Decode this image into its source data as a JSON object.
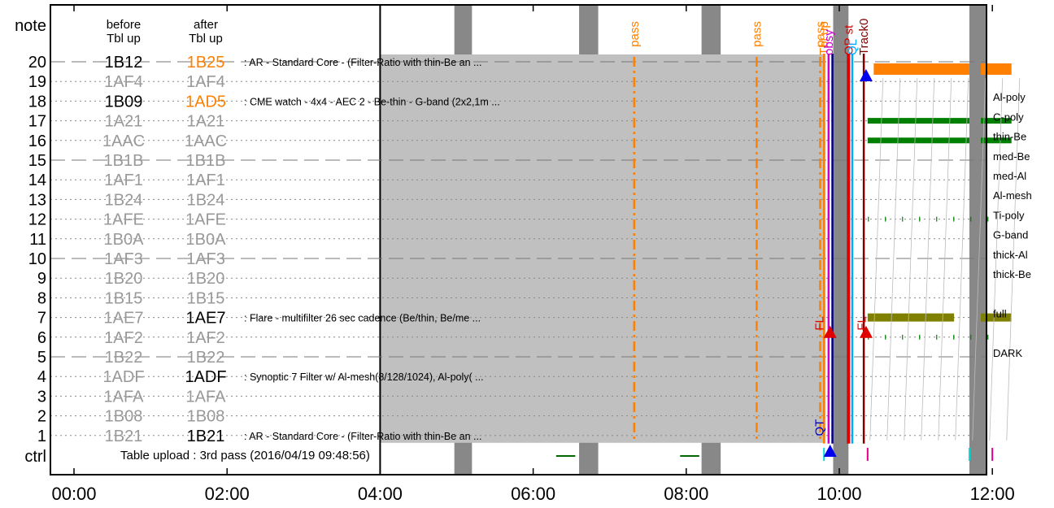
{
  "chart_data": {
    "type": "timeline",
    "x_range_hours": [
      0,
      12.25
    ],
    "x_ticks": [
      "00:00",
      "02:00",
      "04:00",
      "06:00",
      "08:00",
      "10:00",
      "12:00"
    ],
    "y_top_label": "note",
    "y_bottom_label": "ctrl",
    "rows": [
      {
        "row": 20,
        "before": "1B12",
        "after": "1B25",
        "after_color": "#ff8000",
        "before_state": "active",
        "after_state": "changed",
        "note": ": AR - Standard Core - (Filter-Ratio with thin-Be an ...",
        "right": ""
      },
      {
        "row": 19,
        "before": "1AF4",
        "after": "1AF4",
        "before_state": "inactive",
        "after_state": "inactive",
        "note": "",
        "right": "Al-poly"
      },
      {
        "row": 18,
        "before": "1B09",
        "after": "1AD5",
        "after_color": "#ff8000",
        "before_state": "active",
        "after_state": "changed",
        "note": ": CME watch - 4x4 - AEC 2 - Be-thin - G-band (2x2,1m ...",
        "right": "C-poly"
      },
      {
        "row": 17,
        "before": "1A21",
        "after": "1A21",
        "before_state": "inactive",
        "after_state": "inactive",
        "note": "",
        "right": "thin-Be"
      },
      {
        "row": 16,
        "before": "1AAC",
        "after": "1AAC",
        "before_state": "inactive",
        "after_state": "inactive",
        "note": "",
        "right": "med-Be"
      },
      {
        "row": 15,
        "before": "1B1B",
        "after": "1B1B",
        "before_state": "inactive",
        "after_state": "inactive",
        "note": "",
        "right": "med-Al"
      },
      {
        "row": 14,
        "before": "1AF1",
        "after": "1AF1",
        "before_state": "inactive",
        "after_state": "inactive",
        "note": "",
        "right": "Al-mesh"
      },
      {
        "row": 13,
        "before": "1B24",
        "after": "1B24",
        "before_state": "inactive",
        "after_state": "inactive",
        "note": "",
        "right": "Ti-poly"
      },
      {
        "row": 12,
        "before": "1AFE",
        "after": "1AFE",
        "before_state": "inactive",
        "after_state": "inactive",
        "note": "",
        "right": "G-band"
      },
      {
        "row": 11,
        "before": "1B0A",
        "after": "1B0A",
        "before_state": "inactive",
        "after_state": "inactive",
        "note": "",
        "right": "thick-Al"
      },
      {
        "row": 10,
        "before": "1AF3",
        "after": "1AF3",
        "before_state": "inactive",
        "after_state": "inactive",
        "note": "",
        "right": "thick-Be"
      },
      {
        "row": 9,
        "before": "1B20",
        "after": "1B20",
        "before_state": "inactive",
        "after_state": "inactive",
        "note": "",
        "right": ""
      },
      {
        "row": 8,
        "before": "1B15",
        "after": "1B15",
        "before_state": "inactive",
        "after_state": "inactive",
        "note": "",
        "right": "full"
      },
      {
        "row": 7,
        "before": "1AE7",
        "after": "1AE7",
        "before_state": "inactive",
        "after_state": "active",
        "note": ": Flare - multifilter 26 sec cadence (Be/thin, Be/me ...",
        "right": ""
      },
      {
        "row": 6,
        "before": "1AF2",
        "after": "1AF2",
        "before_state": "inactive",
        "after_state": "inactive",
        "note": "",
        "right": "DARK"
      },
      {
        "row": 5,
        "before": "1B22",
        "after": "1B22",
        "before_state": "inactive",
        "after_state": "inactive",
        "note": "",
        "right": ""
      },
      {
        "row": 4,
        "before": "1ADF",
        "after": "1ADF",
        "before_state": "inactive",
        "after_state": "active",
        "note": ": Synoptic 7 Filter w/ Al-mesh(8/128/1024), Al-poly( ...",
        "right": ""
      },
      {
        "row": 3,
        "before": "1AFA",
        "after": "1AFA",
        "before_state": "inactive",
        "after_state": "inactive",
        "note": "",
        "right": ""
      },
      {
        "row": 2,
        "before": "1B08",
        "after": "1B08",
        "before_state": "inactive",
        "after_state": "inactive",
        "note": "",
        "right": ""
      },
      {
        "row": 1,
        "before": "1B21",
        "after": "1B21",
        "before_state": "inactive",
        "after_state": "active",
        "note": ": AR - Standard Core - (Filter-Ratio with thin-Be an ...",
        "right": ""
      }
    ],
    "column_headers": {
      "before": "before\nTbl up",
      "after": "after\nTbl up"
    },
    "ctrl_text": "Table upload : 3rd pass (2016/04/19 09:48:56)",
    "upload_span": {
      "start": 4.0,
      "end": 9.82
    },
    "grid": {
      "dashed_rows": [
        20,
        15,
        10,
        5
      ],
      "dotted_rows": [
        19,
        18,
        17,
        16,
        14,
        13,
        12,
        11,
        9,
        8,
        7,
        6,
        4,
        3,
        2,
        1
      ]
    },
    "gray_bands": [
      [
        4.97,
        5.2
      ],
      [
        6.6,
        6.85
      ],
      [
        8.2,
        8.45
      ],
      [
        9.92,
        10.12
      ],
      [
        11.7,
        11.92
      ]
    ],
    "pass_lines": [
      {
        "t": 7.32,
        "label": "pass",
        "color": "#ff8000"
      },
      {
        "t": 8.92,
        "label": "pass",
        "color": "#ff8000"
      },
      {
        "t": 9.75,
        "label": "pass",
        "color": "#ff8000"
      }
    ],
    "event_lines": [
      {
        "t": 9.8,
        "label": "Tbl up",
        "color": "#ff8000"
      },
      {
        "t": 9.86,
        "label": "obsy",
        "color": "#cc00cc"
      },
      {
        "t": 9.91,
        "label": "",
        "color": "#000080"
      },
      {
        "t": 10.12,
        "label": "OP st",
        "color": "#e00000"
      },
      {
        "t": 10.17,
        "label": "QL",
        "color": "#00aaff"
      },
      {
        "t": 10.32,
        "label": "Track0",
        "color": "#800000"
      }
    ],
    "vert_labels": [
      {
        "t": 9.73,
        "row": 6.7,
        "text": "FL",
        "color": "#e00000"
      },
      {
        "t": 10.28,
        "row": 6.7,
        "text": "FL",
        "color": "#e00000"
      },
      {
        "t": 9.73,
        "row": 1.4,
        "text": "QT",
        "color": "#0000cc"
      }
    ],
    "triangles": [
      {
        "t": 10.35,
        "row": 19.3,
        "color": "#0000ee"
      },
      {
        "t": 9.88,
        "row": 6.25,
        "color": "#e00000"
      },
      {
        "t": 10.35,
        "row": 6.25,
        "color": "#e00000"
      },
      {
        "t": 9.88,
        "row": -0.3,
        "color": "#0000ee"
      }
    ],
    "bars": [
      {
        "row": 20,
        "start": 10.45,
        "end": 11.7,
        "color": "#ff8000"
      },
      {
        "row": 20,
        "start": 11.85,
        "end": 12.25,
        "color": "#ff8000"
      },
      {
        "row": 17,
        "start": 10.37,
        "end": 11.7,
        "color": "#008000"
      },
      {
        "row": 17,
        "start": 11.85,
        "end": 12.25,
        "color": "#008000"
      },
      {
        "row": 16,
        "start": 10.37,
        "end": 11.7,
        "color": "#008000"
      },
      {
        "row": 16,
        "start": 11.85,
        "end": 12.25,
        "color": "#008000"
      },
      {
        "row": 7,
        "start": 10.37,
        "end": 11.5,
        "color": "#808000"
      },
      {
        "row": 7,
        "start": 11.85,
        "end": 12.25,
        "color": "#808000"
      }
    ],
    "ctrl_segments": [
      {
        "start": 6.3,
        "end": 6.55,
        "color": "#006600"
      },
      {
        "start": 7.92,
        "end": 8.17,
        "color": "#006600"
      }
    ]
  }
}
